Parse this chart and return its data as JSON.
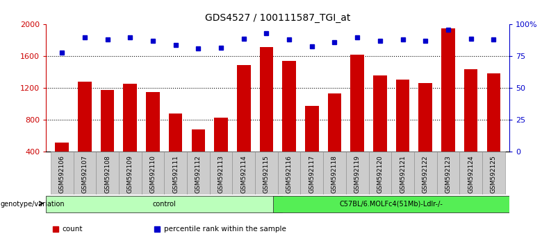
{
  "title": "GDS4527 / 100111587_TGI_at",
  "samples": [
    "GSM592106",
    "GSM592107",
    "GSM592108",
    "GSM592109",
    "GSM592110",
    "GSM592111",
    "GSM592112",
    "GSM592113",
    "GSM592114",
    "GSM592115",
    "GSM592116",
    "GSM592117",
    "GSM592118",
    "GSM592119",
    "GSM592120",
    "GSM592121",
    "GSM592122",
    "GSM592123",
    "GSM592124",
    "GSM592125"
  ],
  "counts": [
    520,
    1280,
    1175,
    1260,
    1155,
    880,
    680,
    830,
    1490,
    1720,
    1540,
    980,
    1130,
    1620,
    1360,
    1310,
    1265,
    1950,
    1440,
    1390
  ],
  "percentile_ranks": [
    78,
    90,
    88,
    90,
    87,
    84,
    81,
    82,
    89,
    93,
    88,
    83,
    86,
    90,
    87,
    88,
    87,
    96,
    89,
    88
  ],
  "groups": [
    {
      "label": "control",
      "start": 0,
      "end": 10,
      "color": "#bbffbb"
    },
    {
      "label": "C57BL/6.MOLFc4(51Mb)-Ldlr-/-",
      "start": 10,
      "end": 20,
      "color": "#55ee55"
    }
  ],
  "bar_color": "#cc0000",
  "dot_color": "#0000cc",
  "ylim_left": [
    400,
    2000
  ],
  "ylim_right": [
    0,
    100
  ],
  "yticks_left": [
    400,
    800,
    1200,
    1600,
    2000
  ],
  "yticks_right": [
    0,
    25,
    50,
    75,
    100
  ],
  "grid_values": [
    800,
    1200,
    1600
  ],
  "title_fontsize": 10,
  "tick_label_fontsize": 6.5,
  "legend_items": [
    {
      "color": "#cc0000",
      "label": "count"
    },
    {
      "color": "#0000cc",
      "label": "percentile rank within the sample"
    }
  ]
}
